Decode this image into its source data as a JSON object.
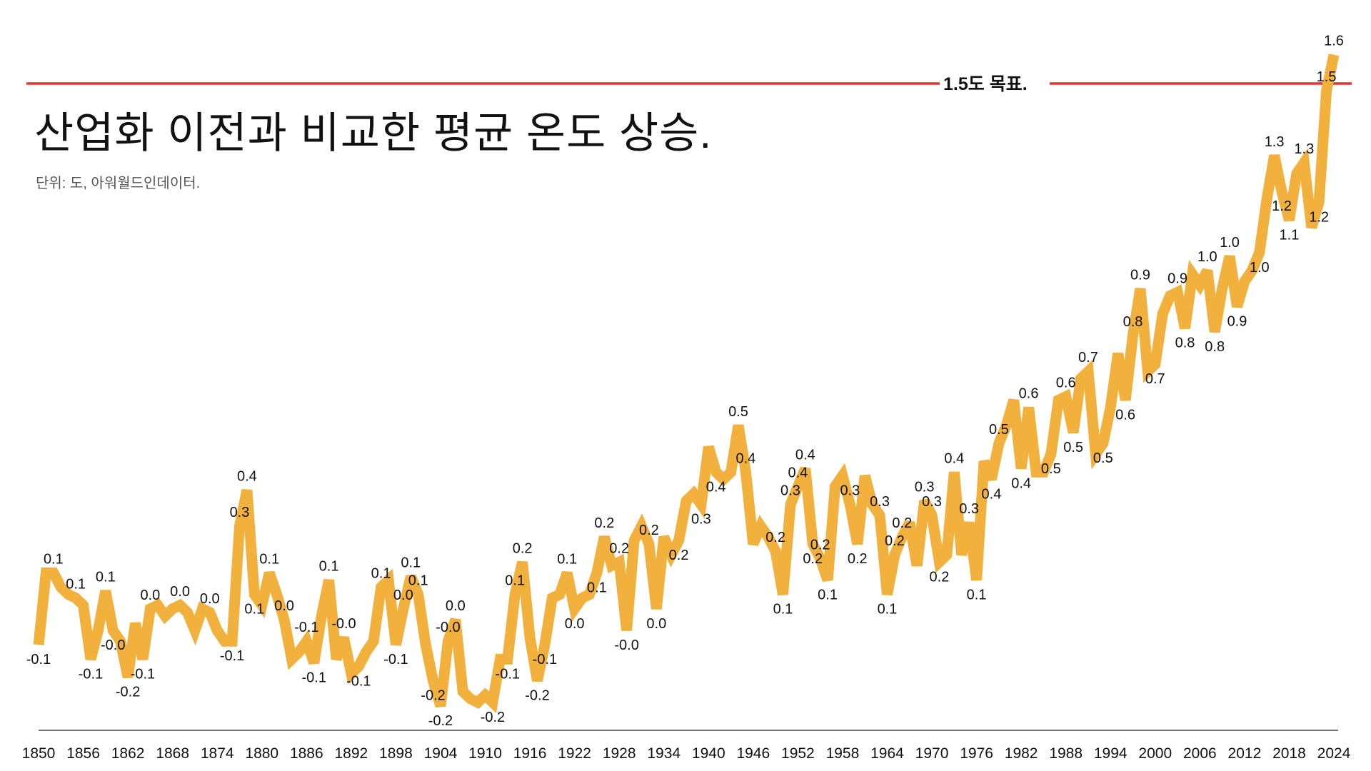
{
  "chart_data": {
    "type": "line",
    "title": "산업화 이전과 비교한 평균 온도 상승.",
    "subtitle": "단위: 도, 아워월드인데이터.",
    "xlabel": "",
    "ylabel": "",
    "x_start": 1850,
    "x_end": 2024,
    "ylim": [
      -0.3,
      1.65
    ],
    "grid": false,
    "legend": "none",
    "line_color": "#F2B13C",
    "target": {
      "value": 1.5,
      "label": "1.5도 목표.",
      "color": "#E0392B"
    },
    "xticks": [
      "1850",
      "1856",
      "1862",
      "1868",
      "1874",
      "1880",
      "1886",
      "1892",
      "1898",
      "1904",
      "1910",
      "1916",
      "1922",
      "1928",
      "1934",
      "1940",
      "1946",
      "1952",
      "1958",
      "1964",
      "1970",
      "1976",
      "1982",
      "1988",
      "1994",
      "2000",
      "2006",
      "2012",
      "2018",
      "2024"
    ],
    "values": [
      -0.06,
      0.14,
      0.14,
      0.1,
      0.08,
      0.07,
      0.05,
      -0.1,
      -0.02,
      0.09,
      -0.02,
      -0.05,
      -0.15,
      0.0,
      -0.1,
      0.04,
      0.05,
      0.02,
      0.04,
      0.05,
      0.03,
      -0.02,
      0.04,
      0.03,
      -0.02,
      -0.05,
      -0.05,
      0.27,
      0.37,
      0.08,
      0.05,
      0.14,
      0.08,
      0.01,
      -0.1,
      -0.08,
      -0.05,
      -0.11,
      0.02,
      0.12,
      -0.1,
      -0.04,
      -0.14,
      -0.12,
      -0.08,
      -0.05,
      0.1,
      0.12,
      -0.06,
      0.04,
      0.13,
      0.08,
      -0.06,
      -0.16,
      -0.23,
      -0.05,
      0.01,
      -0.19,
      -0.21,
      -0.22,
      -0.2,
      -0.22,
      -0.1,
      -0.1,
      0.08,
      0.17,
      -0.04,
      -0.16,
      -0.06,
      0.07,
      0.08,
      0.14,
      0.04,
      0.07,
      0.08,
      0.14,
      0.24,
      0.16,
      0.17,
      -0.02,
      0.23,
      0.27,
      0.22,
      0.04,
      0.24,
      0.19,
      0.23,
      0.34,
      0.36,
      0.33,
      0.49,
      0.42,
      0.4,
      0.42,
      0.55,
      0.42,
      0.22,
      0.27,
      0.24,
      0.2,
      0.08,
      0.33,
      0.38,
      0.43,
      0.22,
      0.18,
      0.12,
      0.38,
      0.41,
      0.33,
      0.22,
      0.41,
      0.33,
      0.3,
      0.08,
      0.19,
      0.24,
      0.28,
      0.16,
      0.34,
      0.3,
      0.17,
      0.19,
      0.42,
      0.19,
      0.28,
      0.12,
      0.45,
      0.4,
      0.5,
      0.55,
      0.62,
      0.43,
      0.6,
      0.42,
      0.42,
      0.47,
      0.62,
      0.63,
      0.53,
      0.68,
      0.7,
      0.47,
      0.5,
      0.6,
      0.75,
      0.62,
      0.8,
      0.93,
      0.7,
      0.72,
      0.86,
      0.91,
      0.92,
      0.82,
      0.97,
      0.94,
      0.98,
      0.81,
      0.93,
      1.02,
      0.88,
      0.95,
      0.98,
      1.03,
      1.18,
      1.3,
      1.2,
      1.12,
      1.25,
      1.28,
      1.1,
      1.17,
      1.48,
      1.58
    ],
    "data_labels": [
      {
        "year": 1850,
        "text": "-0.1"
      },
      {
        "year": 1852,
        "text": "0.1"
      },
      {
        "year": 1855,
        "text": "0.1"
      },
      {
        "year": 1857,
        "text": "-0.1"
      },
      {
        "year": 1859,
        "text": "0.1"
      },
      {
        "year": 1860,
        "text": "-0.0"
      },
      {
        "year": 1862,
        "text": "-0.2"
      },
      {
        "year": 1864,
        "text": "-0.1"
      },
      {
        "year": 1865,
        "text": "0.0"
      },
      {
        "year": 1869,
        "text": "0.0"
      },
      {
        "year": 1873,
        "text": "0.0"
      },
      {
        "year": 1876,
        "text": "-0.1"
      },
      {
        "year": 1877,
        "text": "0.3"
      },
      {
        "year": 1878,
        "text": "0.4"
      },
      {
        "year": 1879,
        "text": "0.1"
      },
      {
        "year": 1881,
        "text": "0.1"
      },
      {
        "year": 1883,
        "text": "0.0"
      },
      {
        "year": 1886,
        "text": "-0.1"
      },
      {
        "year": 1887,
        "text": "-0.1"
      },
      {
        "year": 1889,
        "text": "0.1"
      },
      {
        "year": 1891,
        "text": "-0.0"
      },
      {
        "year": 1893,
        "text": "-0.1"
      },
      {
        "year": 1896,
        "text": "0.1"
      },
      {
        "year": 1898,
        "text": "-0.1"
      },
      {
        "year": 1899,
        "text": "0.0"
      },
      {
        "year": 1900,
        "text": "0.1"
      },
      {
        "year": 1901,
        "text": "0.1"
      },
      {
        "year": 1903,
        "text": "-0.2"
      },
      {
        "year": 1904,
        "text": "-0.2"
      },
      {
        "year": 1905,
        "text": "-0.0"
      },
      {
        "year": 1906,
        "text": "0.0"
      },
      {
        "year": 1911,
        "text": "-0.2"
      },
      {
        "year": 1913,
        "text": "-0.1"
      },
      {
        "year": 1914,
        "text": "0.1"
      },
      {
        "year": 1915,
        "text": "0.2"
      },
      {
        "year": 1917,
        "text": "-0.2"
      },
      {
        "year": 1918,
        "text": "-0.1"
      },
      {
        "year": 1921,
        "text": "0.1"
      },
      {
        "year": 1922,
        "text": "0.0"
      },
      {
        "year": 1925,
        "text": "0.1"
      },
      {
        "year": 1926,
        "text": "0.2"
      },
      {
        "year": 1928,
        "text": "0.2"
      },
      {
        "year": 1929,
        "text": "-0.0"
      },
      {
        "year": 1932,
        "text": "0.2"
      },
      {
        "year": 1933,
        "text": "0.0"
      },
      {
        "year": 1936,
        "text": "0.2"
      },
      {
        "year": 1939,
        "text": "0.3"
      },
      {
        "year": 1941,
        "text": "0.4"
      },
      {
        "year": 1944,
        "text": "0.5"
      },
      {
        "year": 1945,
        "text": "0.4"
      },
      {
        "year": 1949,
        "text": "0.2"
      },
      {
        "year": 1950,
        "text": "0.1"
      },
      {
        "year": 1951,
        "text": "0.3"
      },
      {
        "year": 1952,
        "text": "0.4"
      },
      {
        "year": 1953,
        "text": "0.4"
      },
      {
        "year": 1954,
        "text": "0.2"
      },
      {
        "year": 1955,
        "text": "0.2"
      },
      {
        "year": 1956,
        "text": "0.1"
      },
      {
        "year": 1959,
        "text": "0.3"
      },
      {
        "year": 1960,
        "text": "0.2"
      },
      {
        "year": 1963,
        "text": "0.3"
      },
      {
        "year": 1964,
        "text": "0.1"
      },
      {
        "year": 1965,
        "text": "0.2"
      },
      {
        "year": 1966,
        "text": "0.2"
      },
      {
        "year": 1969,
        "text": "0.3"
      },
      {
        "year": 1970,
        "text": "0.3"
      },
      {
        "year": 1971,
        "text": "0.2"
      },
      {
        "year": 1973,
        "text": "0.4"
      },
      {
        "year": 1975,
        "text": "0.3"
      },
      {
        "year": 1976,
        "text": "0.1"
      },
      {
        "year": 1978,
        "text": "0.4"
      },
      {
        "year": 1979,
        "text": "0.5"
      },
      {
        "year": 1982,
        "text": "0.4"
      },
      {
        "year": 1983,
        "text": "0.6"
      },
      {
        "year": 1986,
        "text": "0.5"
      },
      {
        "year": 1988,
        "text": "0.6"
      },
      {
        "year": 1989,
        "text": "0.5"
      },
      {
        "year": 1991,
        "text": "0.7"
      },
      {
        "year": 1993,
        "text": "0.5"
      },
      {
        "year": 1996,
        "text": "0.6"
      },
      {
        "year": 1997,
        "text": "0.8"
      },
      {
        "year": 1998,
        "text": "0.9"
      },
      {
        "year": 2000,
        "text": "0.7"
      },
      {
        "year": 2003,
        "text": "0.9"
      },
      {
        "year": 2004,
        "text": "0.8"
      },
      {
        "year": 2007,
        "text": "1.0"
      },
      {
        "year": 2008,
        "text": "0.8"
      },
      {
        "year": 2010,
        "text": "1.0"
      },
      {
        "year": 2011,
        "text": "0.9"
      },
      {
        "year": 2014,
        "text": "1.0"
      },
      {
        "year": 2016,
        "text": "1.3"
      },
      {
        "year": 2017,
        "text": "1.2"
      },
      {
        "year": 2018,
        "text": "1.1"
      },
      {
        "year": 2020,
        "text": "1.3"
      },
      {
        "year": 2022,
        "text": "1.2"
      },
      {
        "year": 2023,
        "text": "1.5"
      },
      {
        "year": 2024,
        "text": "1.6"
      }
    ]
  }
}
